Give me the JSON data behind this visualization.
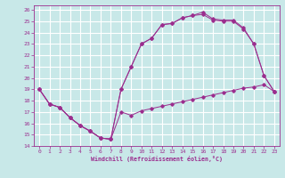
{
  "xlabel": "Windchill (Refroidissement éolien,°C)",
  "bg_color": "#c8e8e8",
  "grid_color": "#ffffff",
  "line_color": "#9b2d8e",
  "xlim": [
    -0.5,
    23.5
  ],
  "ylim": [
    14,
    26.4
  ],
  "xticks": [
    0,
    1,
    2,
    3,
    4,
    5,
    6,
    7,
    8,
    9,
    10,
    11,
    12,
    13,
    14,
    15,
    16,
    17,
    18,
    19,
    20,
    21,
    22,
    23
  ],
  "yticks": [
    14,
    15,
    16,
    17,
    18,
    19,
    20,
    21,
    22,
    23,
    24,
    25,
    26
  ],
  "line1_x": [
    0,
    1,
    2,
    3,
    4,
    5,
    6,
    7,
    8,
    9,
    10,
    11,
    12,
    13,
    14,
    15,
    16,
    17,
    18,
    19,
    20,
    21,
    22,
    23
  ],
  "line1_y": [
    19.0,
    17.7,
    17.4,
    16.5,
    15.8,
    15.3,
    14.7,
    14.6,
    17.0,
    16.7,
    17.1,
    17.3,
    17.5,
    17.7,
    17.9,
    18.1,
    18.3,
    18.5,
    18.7,
    18.9,
    19.1,
    19.2,
    19.4,
    18.8
  ],
  "line2_x": [
    0,
    1,
    2,
    3,
    4,
    5,
    6,
    7,
    8,
    9,
    10,
    11,
    12,
    13,
    14,
    15,
    16,
    17,
    18,
    19,
    20,
    21,
    22,
    23
  ],
  "line2_y": [
    19.0,
    17.7,
    17.4,
    16.5,
    15.8,
    15.3,
    14.7,
    14.6,
    19.0,
    21.0,
    23.0,
    23.5,
    24.7,
    24.8,
    25.3,
    25.5,
    25.6,
    25.1,
    25.0,
    25.0,
    24.3,
    23.0,
    20.2,
    18.8
  ],
  "line3_x": [
    0,
    1,
    2,
    3,
    4,
    5,
    6,
    7,
    8,
    9,
    10,
    11,
    12,
    13,
    14,
    15,
    16,
    17,
    18,
    19,
    20,
    21,
    22,
    23
  ],
  "line3_y": [
    19.0,
    17.7,
    17.4,
    16.5,
    15.8,
    15.3,
    14.7,
    14.6,
    19.0,
    21.0,
    23.0,
    23.5,
    24.7,
    24.8,
    25.3,
    25.5,
    25.8,
    25.2,
    25.1,
    25.1,
    24.4,
    23.0,
    20.2,
    18.8
  ]
}
